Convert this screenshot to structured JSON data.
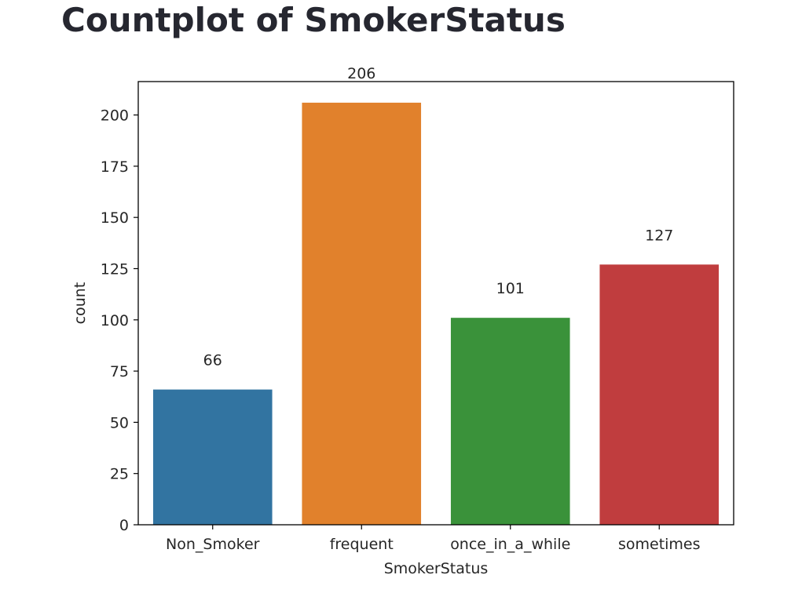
{
  "page": {
    "title": "Countplot of SmokerStatus"
  },
  "chart_data": {
    "type": "bar",
    "categories": [
      "Non_Smoker",
      "frequent",
      "once_in_a_while",
      "sometimes"
    ],
    "values": [
      66,
      206,
      101,
      127
    ],
    "data_labels": [
      "66",
      "206",
      "101",
      "127"
    ],
    "colors": [
      "#3274a1",
      "#e1812c",
      "#3a923a",
      "#c03d3e"
    ],
    "xlabel": "SmokerStatus",
    "ylabel": "count",
    "ylim": [
      0,
      216.3
    ],
    "yticks": [
      0,
      25,
      50,
      75,
      100,
      125,
      150,
      175,
      200
    ],
    "grid": false,
    "legend": "none"
  }
}
